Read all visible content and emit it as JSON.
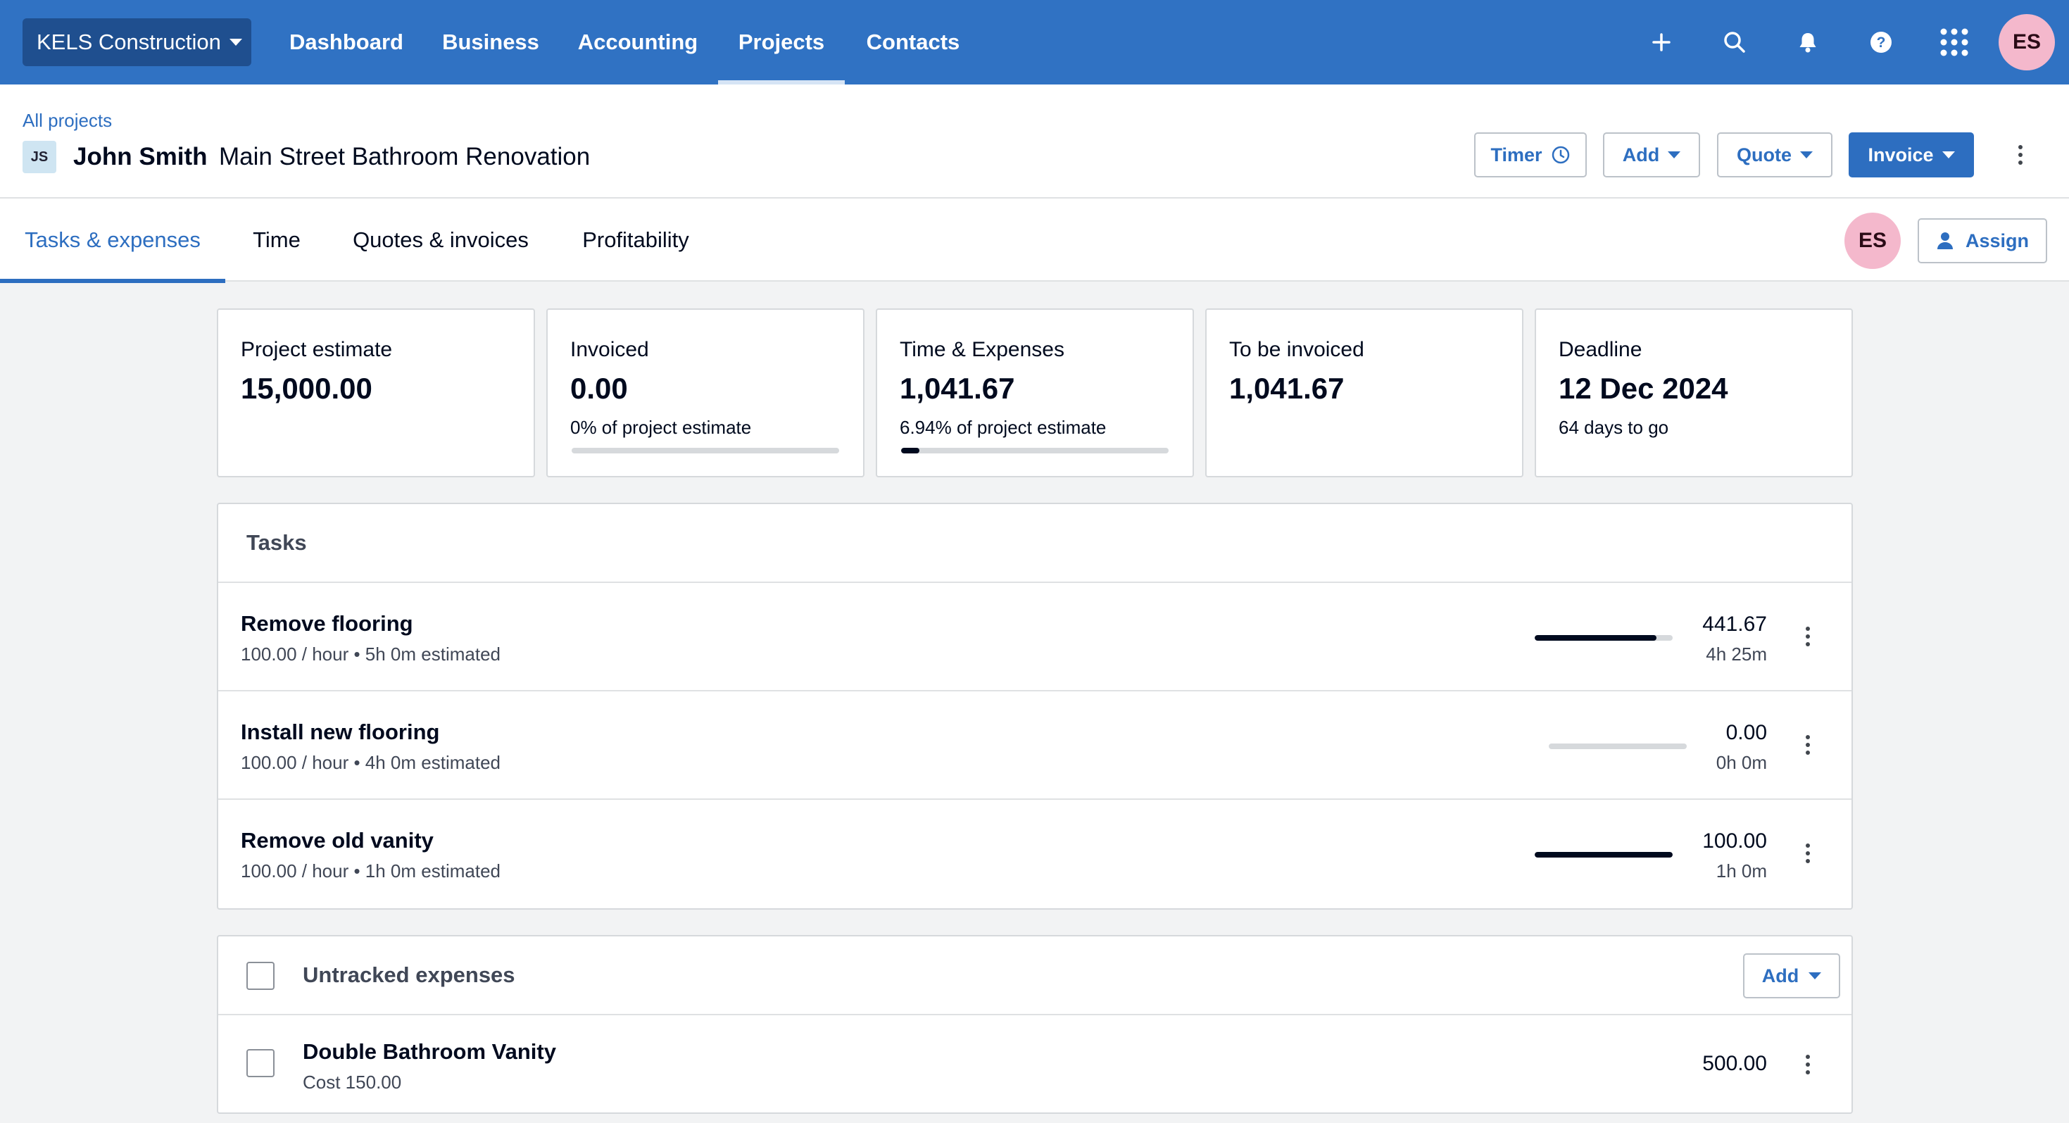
{
  "topnav": {
    "org_name": "KELS Construction",
    "items": [
      {
        "label": "Dashboard"
      },
      {
        "label": "Business"
      },
      {
        "label": "Accounting"
      },
      {
        "label": "Projects",
        "active": true
      },
      {
        "label": "Contacts"
      }
    ],
    "icons": [
      "plus-icon",
      "search-icon",
      "bell-icon",
      "help-icon",
      "apps-grid-icon"
    ],
    "user_initials": "ES"
  },
  "header": {
    "breadcrumb": "All projects",
    "client_initials": "JS",
    "client_name": "John Smith",
    "project_name": "Main Street Bathroom Renovation",
    "buttons": {
      "timer": "Timer",
      "add": "Add",
      "quote": "Quote",
      "invoice": "Invoice"
    }
  },
  "tabs": {
    "items": [
      {
        "label": "Tasks & expenses",
        "active": true
      },
      {
        "label": "Time"
      },
      {
        "label": "Quotes & invoices"
      },
      {
        "label": "Profitability"
      }
    ],
    "assignee_initials": "ES",
    "assign_label": "Assign"
  },
  "summary": {
    "project_estimate": {
      "label": "Project estimate",
      "value": "15,000.00"
    },
    "invoiced": {
      "label": "Invoiced",
      "value": "0.00",
      "sub": "0% of project estimate",
      "progress": 0
    },
    "time_expenses": {
      "label": "Time & Expenses",
      "value": "1,041.67",
      "sub": "6.94% of project estimate",
      "progress": 0.0694
    },
    "to_be_invoiced": {
      "label": "To be invoiced",
      "value": "1,041.67"
    },
    "deadline": {
      "label": "Deadline",
      "value": "12 Dec 2024",
      "sub": "64 days to go"
    }
  },
  "tasks": {
    "title": "Tasks",
    "rows": [
      {
        "name": "Remove flooring",
        "detail": "100.00 / hour • 5h 0m estimated",
        "amount": "441.67",
        "time": "4h 25m",
        "progress": 0.883
      },
      {
        "name": "Install new flooring",
        "detail": "100.00 / hour • 4h 0m estimated",
        "amount": "0.00",
        "time": "0h 0m",
        "progress": 0
      },
      {
        "name": "Remove old vanity",
        "detail": "100.00 / hour • 1h 0m estimated",
        "amount": "100.00",
        "time": "1h 0m",
        "progress": 1
      }
    ]
  },
  "expenses": {
    "title": "Untracked expenses",
    "add_label": "Add",
    "rows": [
      {
        "name": "Double Bathroom Vanity",
        "detail": "Cost 150.00",
        "amount": "500.00"
      }
    ]
  }
}
